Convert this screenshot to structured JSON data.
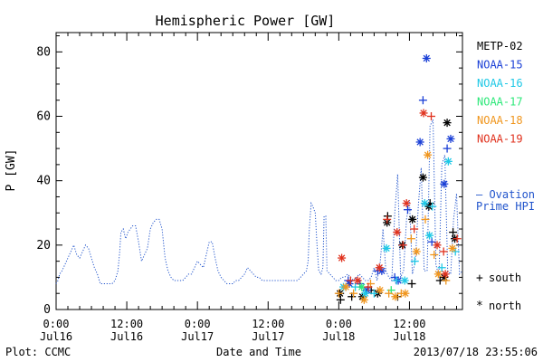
{
  "chart_data": {
    "type": "scatter",
    "title": "Hemispheric Power [GW]",
    "ylabel": "P [GW]",
    "xlabel": "Date and Time",
    "ylim": [
      0,
      86
    ],
    "xlim": [
      0,
      69
    ],
    "yticks": [
      0,
      20,
      40,
      60,
      80
    ],
    "xticks": [
      {
        "x": 0,
        "line1": "0:00",
        "line2": "Jul16"
      },
      {
        "x": 12,
        "line1": "12:00",
        "line2": "Jul16"
      },
      {
        "x": 24,
        "line1": "0:00",
        "line2": "Jul17"
      },
      {
        "x": 36,
        "line1": "12:00",
        "line2": "Jul17"
      },
      {
        "x": 48,
        "line1": "0:00",
        "line2": "Jul18"
      },
      {
        "x": 60,
        "line1": "12:00",
        "line2": "Jul18"
      }
    ],
    "legend": [
      {
        "name": "METP-02",
        "color": "#000000"
      },
      {
        "name": "NOAA-15",
        "color": "#1a3fd6"
      },
      {
        "name": "NOAA-16",
        "color": "#1ec8e6"
      },
      {
        "name": "NOAA-17",
        "color": "#2ee87a"
      },
      {
        "name": "NOAA-18",
        "color": "#f0961e"
      },
      {
        "name": "NOAA-19",
        "color": "#e0321e"
      }
    ],
    "ovation_label_1": "— Ovation",
    "ovation_label_2": "Prime HPI",
    "ovation_color": "#2255cc",
    "marker_legend": {
      "south_symbol": "+",
      "south_label": "south",
      "north_symbol": "*",
      "north_label": "north"
    },
    "ovation_series": [
      [
        0,
        8
      ],
      [
        0.3,
        9
      ],
      [
        0.6,
        11
      ],
      [
        1,
        12
      ],
      [
        1.5,
        14
      ],
      [
        2,
        16
      ],
      [
        2.5,
        18
      ],
      [
        3,
        20
      ],
      [
        3.5,
        17
      ],
      [
        4,
        16
      ],
      [
        4.5,
        18
      ],
      [
        5,
        20
      ],
      [
        5.5,
        19
      ],
      [
        6,
        16
      ],
      [
        6.5,
        13
      ],
      [
        7,
        11
      ],
      [
        7.5,
        8
      ],
      [
        8,
        8
      ],
      [
        8.5,
        8
      ],
      [
        9,
        8
      ],
      [
        9.5,
        8
      ],
      [
        10,
        9
      ],
      [
        10.5,
        12
      ],
      [
        10.8,
        18
      ],
      [
        11,
        24
      ],
      [
        11.4,
        25
      ],
      [
        11.8,
        22
      ],
      [
        12.2,
        24
      ],
      [
        12.6,
        25
      ],
      [
        13,
        26
      ],
      [
        13.5,
        26
      ],
      [
        14,
        21
      ],
      [
        14.5,
        15
      ],
      [
        15,
        17
      ],
      [
        15.5,
        19
      ],
      [
        16,
        25
      ],
      [
        16.5,
        27
      ],
      [
        17,
        28
      ],
      [
        17.5,
        28
      ],
      [
        18,
        25
      ],
      [
        18.5,
        16
      ],
      [
        19,
        12
      ],
      [
        19.5,
        10
      ],
      [
        20,
        9
      ],
      [
        20.5,
        9
      ],
      [
        21,
        9
      ],
      [
        21.5,
        9
      ],
      [
        22,
        10
      ],
      [
        22.5,
        11
      ],
      [
        23,
        11
      ],
      [
        23.5,
        13
      ],
      [
        24,
        15
      ],
      [
        24.5,
        14
      ],
      [
        25,
        13
      ],
      [
        25.5,
        17
      ],
      [
        26,
        21
      ],
      [
        26.5,
        21
      ],
      [
        27,
        16
      ],
      [
        27.5,
        12
      ],
      [
        28,
        10
      ],
      [
        28.5,
        9
      ],
      [
        29,
        8
      ],
      [
        29.5,
        8
      ],
      [
        30,
        8
      ],
      [
        30.5,
        9
      ],
      [
        31,
        9
      ],
      [
        31.5,
        10
      ],
      [
        32,
        11
      ],
      [
        32.5,
        13
      ],
      [
        33,
        12
      ],
      [
        33.5,
        11
      ],
      [
        34,
        10
      ],
      [
        34.5,
        10
      ],
      [
        35,
        9
      ],
      [
        35.5,
        9
      ],
      [
        36,
        9
      ],
      [
        36.5,
        9
      ],
      [
        37,
        9
      ],
      [
        37.5,
        9
      ],
      [
        38,
        9
      ],
      [
        38.5,
        9
      ],
      [
        39,
        9
      ],
      [
        39.5,
        9
      ],
      [
        40,
        9
      ],
      [
        40.5,
        9
      ],
      [
        41,
        9
      ],
      [
        41.5,
        10
      ],
      [
        42,
        11
      ],
      [
        42.5,
        12
      ],
      [
        42.8,
        15
      ],
      [
        43,
        25
      ],
      [
        43.3,
        33
      ],
      [
        43.6,
        32
      ],
      [
        44,
        30
      ],
      [
        44.3,
        20
      ],
      [
        44.6,
        12
      ],
      [
        45,
        11
      ],
      [
        45.3,
        13
      ],
      [
        45.5,
        29
      ],
      [
        45.8,
        29
      ],
      [
        46,
        12
      ],
      [
        46.5,
        11
      ],
      [
        47,
        10
      ],
      [
        47.5,
        9
      ],
      [
        48,
        9
      ],
      [
        48.5,
        10
      ],
      [
        49,
        10
      ],
      [
        49.5,
        11
      ],
      [
        50,
        10
      ],
      [
        50.5,
        9
      ],
      [
        51,
        10
      ],
      [
        51.5,
        11
      ],
      [
        52,
        10
      ],
      [
        52.5,
        9
      ],
      [
        53,
        9
      ],
      [
        53.5,
        10
      ],
      [
        54,
        13
      ],
      [
        54.5,
        9
      ],
      [
        55,
        14
      ],
      [
        55.5,
        25
      ],
      [
        56,
        12
      ],
      [
        56.5,
        10
      ],
      [
        57,
        9
      ],
      [
        57.5,
        30
      ],
      [
        58,
        42
      ],
      [
        58.5,
        10
      ],
      [
        59,
        12
      ],
      [
        59.5,
        28
      ],
      [
        60,
        34
      ],
      [
        60.5,
        11
      ],
      [
        61,
        15
      ],
      [
        61.5,
        32
      ],
      [
        62,
        44
      ],
      [
        62.5,
        12
      ],
      [
        63,
        12
      ],
      [
        63.5,
        57
      ],
      [
        64,
        59
      ],
      [
        64.5,
        14
      ],
      [
        65,
        10
      ],
      [
        65.5,
        45
      ],
      [
        66,
        48
      ],
      [
        66.5,
        12
      ],
      [
        67,
        11
      ],
      [
        67.5,
        28
      ],
      [
        68,
        36
      ],
      [
        68.5,
        11
      ],
      [
        69,
        12
      ]
    ],
    "points": [
      {
        "sat": "METP-02",
        "hemi": "south",
        "x": 48.3,
        "y": 3
      },
      {
        "sat": "METP-02",
        "hemi": "north",
        "x": 48.2,
        "y": 5
      },
      {
        "sat": "METP-02",
        "hemi": "south",
        "x": 50.2,
        "y": 4
      },
      {
        "sat": "METP-02",
        "hemi": "north",
        "x": 52,
        "y": 4
      },
      {
        "sat": "METP-02",
        "hemi": "south",
        "x": 53.5,
        "y": 6
      },
      {
        "sat": "METP-02",
        "hemi": "north",
        "x": 54.6,
        "y": 5
      },
      {
        "sat": "METP-02",
        "hemi": "south",
        "x": 56.3,
        "y": 29
      },
      {
        "sat": "METP-02",
        "hemi": "north",
        "x": 56.2,
        "y": 27
      },
      {
        "sat": "METP-02",
        "hemi": "south",
        "x": 58,
        "y": 4
      },
      {
        "sat": "METP-02",
        "hemi": "north",
        "x": 58.8,
        "y": 20
      },
      {
        "sat": "METP-02",
        "hemi": "south",
        "x": 60.4,
        "y": 8
      },
      {
        "sat": "METP-02",
        "hemi": "north",
        "x": 60.5,
        "y": 28
      },
      {
        "sat": "METP-02",
        "hemi": "north",
        "x": 62.3,
        "y": 41
      },
      {
        "sat": "METP-02",
        "hemi": "south",
        "x": 63.5,
        "y": 33
      },
      {
        "sat": "METP-02",
        "hemi": "north",
        "x": 63.3,
        "y": 32
      },
      {
        "sat": "METP-02",
        "hemi": "south",
        "x": 65.2,
        "y": 9
      },
      {
        "sat": "METP-02",
        "hemi": "north",
        "x": 66.4,
        "y": 58
      },
      {
        "sat": "METP-02",
        "hemi": "north",
        "x": 65.9,
        "y": 10
      },
      {
        "sat": "METP-02",
        "hemi": "south",
        "x": 67.4,
        "y": 24
      },
      {
        "sat": "METP-02",
        "hemi": "north",
        "x": 67.7,
        "y": 22
      },
      {
        "sat": "NOAA-15",
        "hemi": "south",
        "x": 49.6,
        "y": 9
      },
      {
        "sat": "NOAA-15",
        "hemi": "north",
        "x": 49.8,
        "y": 8
      },
      {
        "sat": "NOAA-15",
        "hemi": "south",
        "x": 51.6,
        "y": 8
      },
      {
        "sat": "NOAA-15",
        "hemi": "north",
        "x": 52.8,
        "y": 6
      },
      {
        "sat": "NOAA-15",
        "hemi": "south",
        "x": 54.6,
        "y": 12
      },
      {
        "sat": "NOAA-15",
        "hemi": "north",
        "x": 55.3,
        "y": 12
      },
      {
        "sat": "NOAA-15",
        "hemi": "south",
        "x": 57.5,
        "y": 10
      },
      {
        "sat": "NOAA-15",
        "hemi": "north",
        "x": 58.1,
        "y": 9
      },
      {
        "sat": "NOAA-15",
        "hemi": "south",
        "x": 59.7,
        "y": 31
      },
      {
        "sat": "NOAA-15",
        "hemi": "north",
        "x": 61.8,
        "y": 52
      },
      {
        "sat": "NOAA-15",
        "hemi": "south",
        "x": 62.3,
        "y": 65
      },
      {
        "sat": "NOAA-15",
        "hemi": "north",
        "x": 62.9,
        "y": 78
      },
      {
        "sat": "NOAA-15",
        "hemi": "south",
        "x": 63.8,
        "y": 21
      },
      {
        "sat": "NOAA-15",
        "hemi": "north",
        "x": 65.9,
        "y": 39
      },
      {
        "sat": "NOAA-15",
        "hemi": "south",
        "x": 66.4,
        "y": 50
      },
      {
        "sat": "NOAA-15",
        "hemi": "north",
        "x": 67,
        "y": 53
      },
      {
        "sat": "NOAA-16",
        "hemi": "north",
        "x": 48.8,
        "y": 7
      },
      {
        "sat": "NOAA-16",
        "hemi": "south",
        "x": 50.8,
        "y": 7
      },
      {
        "sat": "NOAA-16",
        "hemi": "north",
        "x": 52.5,
        "y": 5
      },
      {
        "sat": "NOAA-16",
        "hemi": "south",
        "x": 54,
        "y": 5
      },
      {
        "sat": "NOAA-16",
        "hemi": "north",
        "x": 56.1,
        "y": 19
      },
      {
        "sat": "NOAA-16",
        "hemi": "south",
        "x": 57.8,
        "y": 9
      },
      {
        "sat": "NOAA-16",
        "hemi": "north",
        "x": 59.2,
        "y": 9
      },
      {
        "sat": "NOAA-16",
        "hemi": "south",
        "x": 60.9,
        "y": 15
      },
      {
        "sat": "NOAA-16",
        "hemi": "north",
        "x": 62.6,
        "y": 33
      },
      {
        "sat": "NOAA-16",
        "hemi": "south",
        "x": 63.9,
        "y": 32
      },
      {
        "sat": "NOAA-16",
        "hemi": "north",
        "x": 63.4,
        "y": 23
      },
      {
        "sat": "NOAA-16",
        "hemi": "south",
        "x": 65.5,
        "y": 13
      },
      {
        "sat": "NOAA-16",
        "hemi": "north",
        "x": 66.6,
        "y": 46
      },
      {
        "sat": "NOAA-16",
        "hemi": "south",
        "x": 67.8,
        "y": 18
      },
      {
        "sat": "NOAA-17",
        "hemi": "north",
        "x": 51.9,
        "y": 7
      },
      {
        "sat": "NOAA-17",
        "hemi": "south",
        "x": 56.9,
        "y": 6
      },
      {
        "sat": "NOAA-18",
        "hemi": "south",
        "x": 48,
        "y": 5
      },
      {
        "sat": "NOAA-18",
        "hemi": "north",
        "x": 49.2,
        "y": 7
      },
      {
        "sat": "NOAA-18",
        "hemi": "south",
        "x": 50.5,
        "y": 5
      },
      {
        "sat": "NOAA-18",
        "hemi": "north",
        "x": 52.3,
        "y": 3
      },
      {
        "sat": "NOAA-18",
        "hemi": "south",
        "x": 53.4,
        "y": 8
      },
      {
        "sat": "NOAA-18",
        "hemi": "north",
        "x": 55,
        "y": 6
      },
      {
        "sat": "NOAA-18",
        "hemi": "south",
        "x": 56.5,
        "y": 5
      },
      {
        "sat": "NOAA-18",
        "hemi": "north",
        "x": 57.6,
        "y": 4
      },
      {
        "sat": "NOAA-18",
        "hemi": "south",
        "x": 58.6,
        "y": 5
      },
      {
        "sat": "NOAA-18",
        "hemi": "north",
        "x": 59.3,
        "y": 5
      },
      {
        "sat": "NOAA-18",
        "hemi": "south",
        "x": 60.3,
        "y": 22
      },
      {
        "sat": "NOAA-18",
        "hemi": "north",
        "x": 61.2,
        "y": 18
      },
      {
        "sat": "NOAA-18",
        "hemi": "south",
        "x": 62.7,
        "y": 28
      },
      {
        "sat": "NOAA-18",
        "hemi": "north",
        "x": 63.1,
        "y": 48
      },
      {
        "sat": "NOAA-18",
        "hemi": "south",
        "x": 64.2,
        "y": 17
      },
      {
        "sat": "NOAA-18",
        "hemi": "north",
        "x": 64.9,
        "y": 11
      },
      {
        "sat": "NOAA-18",
        "hemi": "south",
        "x": 66.2,
        "y": 9
      },
      {
        "sat": "NOAA-18",
        "hemi": "north",
        "x": 67.3,
        "y": 19
      },
      {
        "sat": "NOAA-19",
        "hemi": "north",
        "x": 48.5,
        "y": 16
      },
      {
        "sat": "NOAA-19",
        "hemi": "south",
        "x": 50,
        "y": 9
      },
      {
        "sat": "NOAA-19",
        "hemi": "north",
        "x": 51.2,
        "y": 9
      },
      {
        "sat": "NOAA-19",
        "hemi": "south",
        "x": 53,
        "y": 7
      },
      {
        "sat": "NOAA-19",
        "hemi": "north",
        "x": 54.9,
        "y": 13
      },
      {
        "sat": "NOAA-19",
        "hemi": "south",
        "x": 56.2,
        "y": 28
      },
      {
        "sat": "NOAA-19",
        "hemi": "north",
        "x": 57.9,
        "y": 24
      },
      {
        "sat": "NOAA-19",
        "hemi": "south",
        "x": 58.9,
        "y": 20
      },
      {
        "sat": "NOAA-19",
        "hemi": "north",
        "x": 59.5,
        "y": 33
      },
      {
        "sat": "NOAA-19",
        "hemi": "south",
        "x": 60.8,
        "y": 25
      },
      {
        "sat": "NOAA-19",
        "hemi": "north",
        "x": 62.4,
        "y": 61
      },
      {
        "sat": "NOAA-19",
        "hemi": "south",
        "x": 63.7,
        "y": 60
      },
      {
        "sat": "NOAA-19",
        "hemi": "north",
        "x": 64.7,
        "y": 20
      },
      {
        "sat": "NOAA-19",
        "hemi": "south",
        "x": 65.8,
        "y": 18
      },
      {
        "sat": "NOAA-19",
        "hemi": "north",
        "x": 66.1,
        "y": 11
      },
      {
        "sat": "NOAA-19",
        "hemi": "south",
        "x": 68.1,
        "y": 22
      }
    ]
  },
  "footer": {
    "plot_credit": "Plot: CCMC",
    "timestamp": "2013/07/18 23:55:06"
  }
}
